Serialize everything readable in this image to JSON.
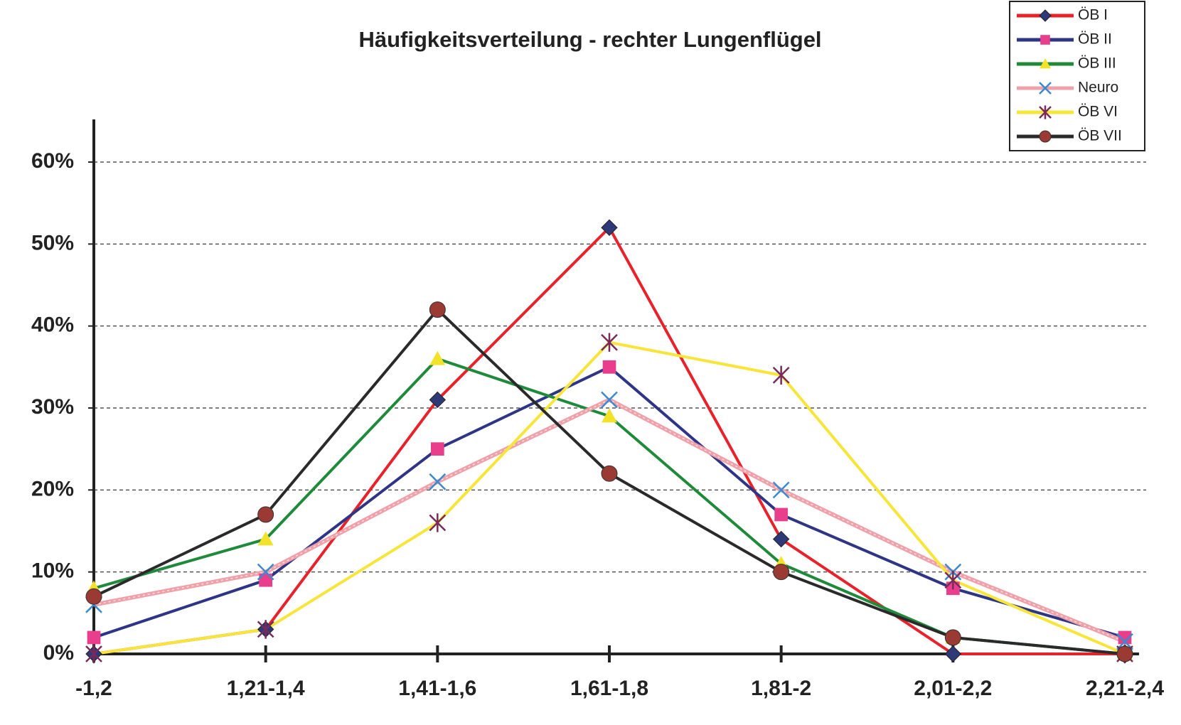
{
  "chart_data": {
    "type": "line",
    "title": "Häufigkeitsverteilung - rechter Lungenflügel",
    "categories": [
      "-1,2",
      "1,21-1,4",
      "1,41-1,6",
      "1,61-1,8",
      "1,81-2",
      "2,01-2,2",
      "2,21-2,4"
    ],
    "ylim": [
      0,
      60
    ],
    "yticks": [
      {
        "value": 0,
        "label": "0%"
      },
      {
        "value": 10,
        "label": "10%"
      },
      {
        "value": 20,
        "label": "20%"
      },
      {
        "value": 30,
        "label": "30%"
      },
      {
        "value": 40,
        "label": "40%"
      },
      {
        "value": 50,
        "label": "50%"
      },
      {
        "value": 60,
        "label": "60%"
      }
    ],
    "grid": true,
    "legend": "top-right",
    "series": [
      {
        "name": "ÖB I",
        "color": "#e8222a",
        "marker": "diamond",
        "marker_color": "#2e3a78",
        "values": [
          0,
          3,
          31,
          52,
          14,
          0,
          0
        ]
      },
      {
        "name": "ÖB II",
        "color": "#2e3585",
        "marker": "square",
        "marker_color": "#e83e8c",
        "values": [
          2,
          9,
          25,
          35,
          17,
          8,
          2
        ]
      },
      {
        "name": "ÖB III",
        "color": "#1e8a3a",
        "marker": "triangle",
        "marker_color": "#f2e22a",
        "values": [
          8,
          14,
          36,
          29,
          11,
          2,
          0
        ]
      },
      {
        "name": "Neuro",
        "color": "#f0a0a8",
        "marker": "x",
        "marker_color": "#3a8ad0",
        "values": [
          6,
          10,
          21,
          31,
          20,
          10,
          1.5
        ]
      },
      {
        "name": "ÖB VI",
        "color": "#f7e53a",
        "marker": "star",
        "marker_color": "#7a2a5a",
        "values": [
          0,
          3,
          16,
          38,
          34,
          9,
          0
        ]
      },
      {
        "name": "ÖB VII",
        "color": "#2a2a2a",
        "marker": "circle",
        "marker_color": "#9a3a32",
        "values": [
          7,
          17,
          42,
          22,
          10,
          2,
          0
        ]
      }
    ]
  }
}
